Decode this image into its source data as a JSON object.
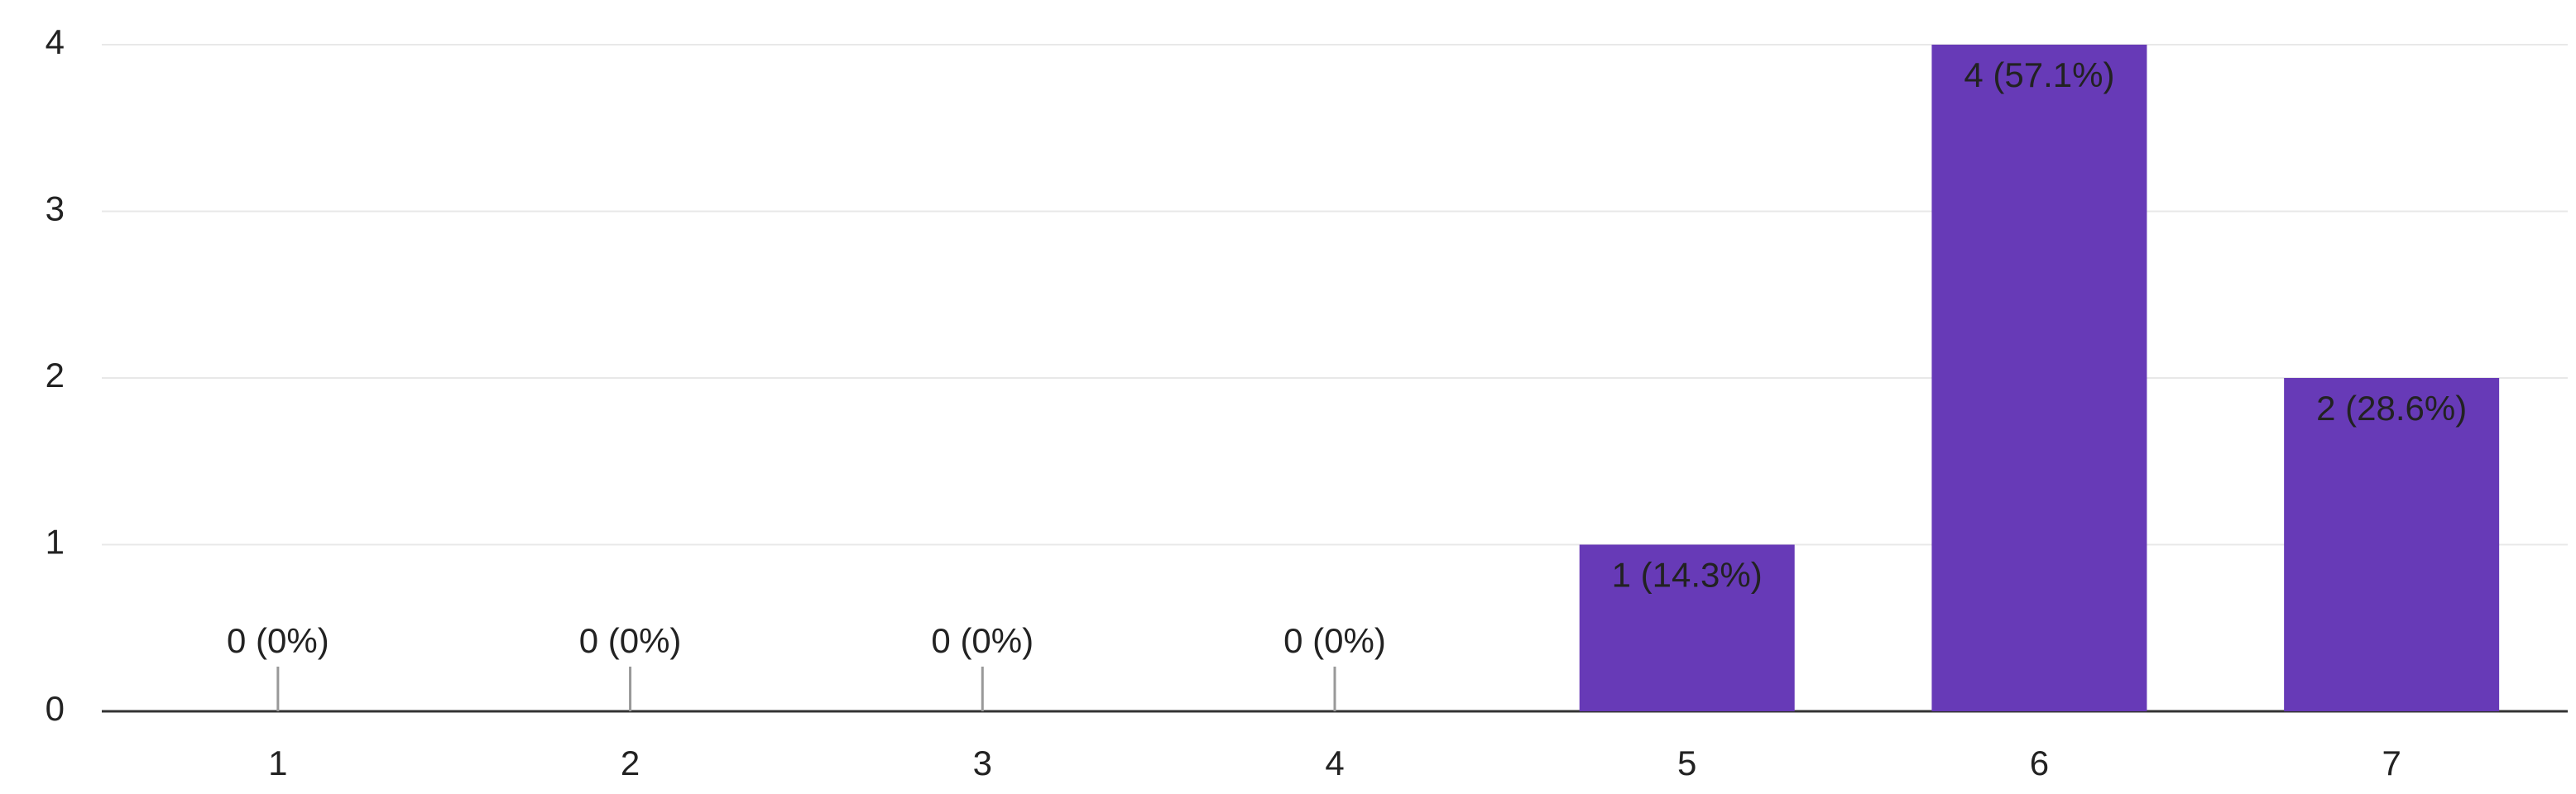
{
  "chart_data": {
    "type": "bar",
    "categories": [
      "1",
      "2",
      "3",
      "4",
      "5",
      "6",
      "7"
    ],
    "values": [
      0,
      0,
      0,
      0,
      1,
      4,
      2
    ],
    "value_labels": [
      "0 (0%)",
      "0 (0%)",
      "0 (0%)",
      "0 (0%)",
      "1 (14.3%)",
      "4 (57.1%)",
      "2 (28.6%)"
    ],
    "color": "#673ab7",
    "ylim": [
      0,
      4
    ],
    "yticks": [
      0,
      1,
      2,
      3,
      4
    ],
    "grid": true
  }
}
